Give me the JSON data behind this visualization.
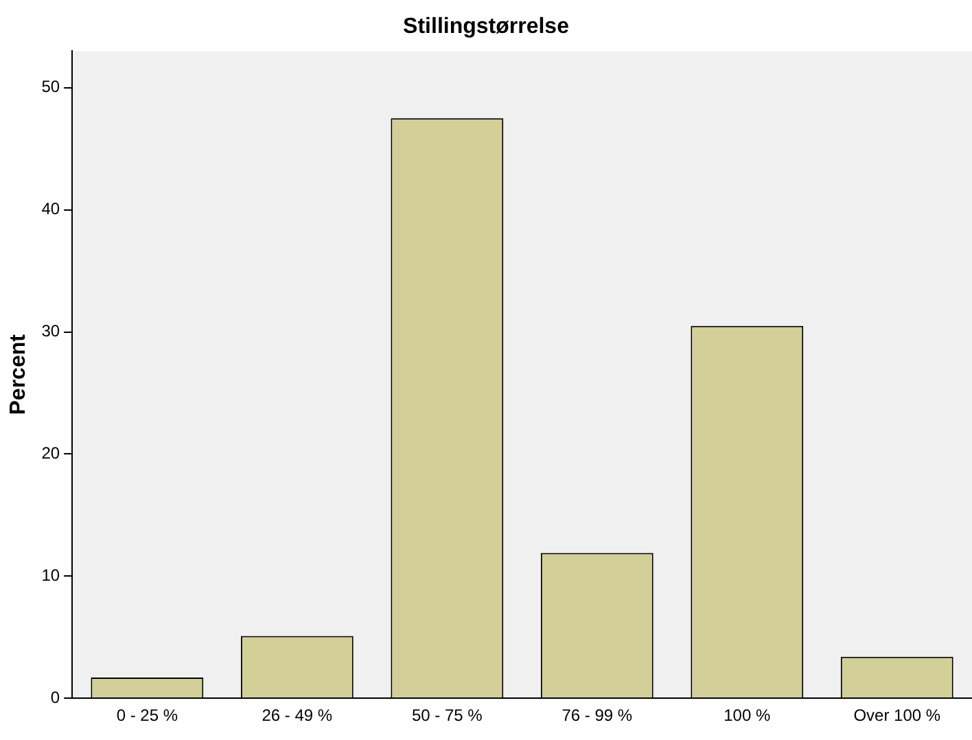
{
  "chart_data": {
    "type": "bar",
    "title": "Stillingstørrelse",
    "ylabel": "Percent",
    "categories": [
      "0 - 25 %",
      "26 - 49 %",
      "50 - 75 %",
      "76 - 99 %",
      "100 %",
      "Over 100 %"
    ],
    "values": [
      1.7,
      5.1,
      47.5,
      11.9,
      30.5,
      3.4
    ],
    "color": "#d3cf98",
    "ylim": [
      0,
      53
    ],
    "yticks": [
      0,
      10,
      20,
      30,
      40,
      50
    ],
    "grid": false,
    "legend": false
  }
}
